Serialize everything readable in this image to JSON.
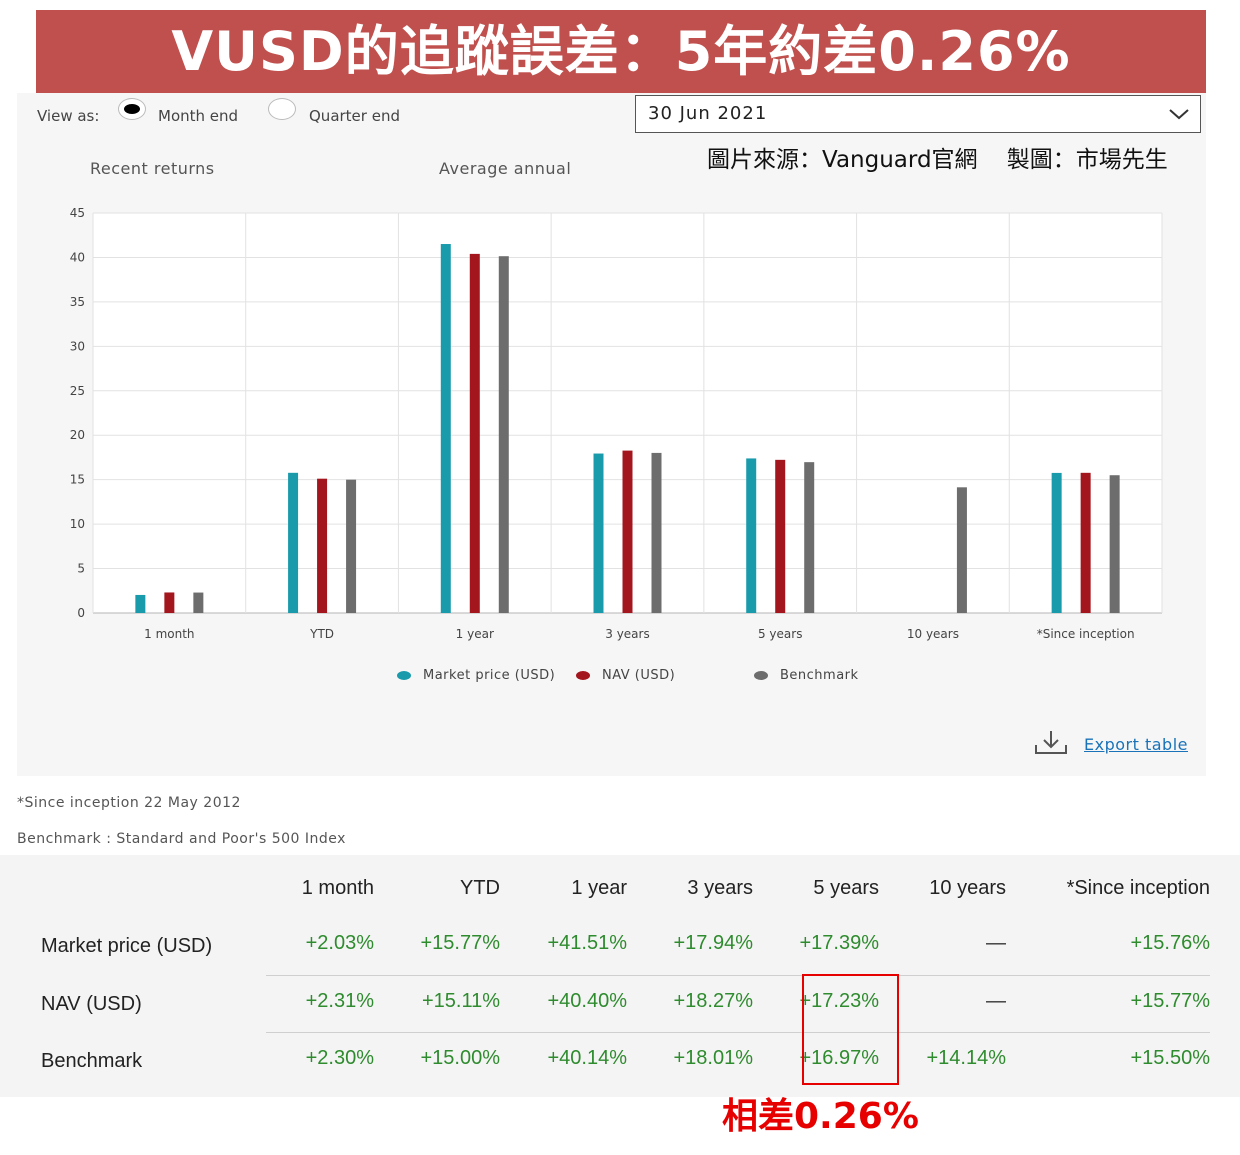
{
  "title": "VUSD的追蹤誤差：5年約差0.26%",
  "controls": {
    "view_as_label": "View as:",
    "month_end_label": "Month end",
    "quarter_end_label": "Quarter end",
    "selected_date": "30 Jun 2021"
  },
  "source_note": "圖片來源：Vanguard官網    製圖：市場先生",
  "section_labels": {
    "recent": "Recent returns",
    "average": "Average annual"
  },
  "export_label": "Export table",
  "footnotes": {
    "since_inception": "*Since inception  22 May 2012",
    "benchmark": "Benchmark : Standard and Poor's 500 Index"
  },
  "chart_data": {
    "type": "bar",
    "categories": [
      "1 month",
      "YTD",
      "1 year",
      "3 years",
      "5 years",
      "10 years",
      "*Since inception"
    ],
    "series": [
      {
        "name": "Market price (USD)",
        "color": "#1a9bac",
        "values": [
          2.03,
          15.77,
          41.51,
          17.94,
          17.39,
          null,
          15.76
        ]
      },
      {
        "name": "NAV (USD)",
        "color": "#a3161e",
        "values": [
          2.31,
          15.11,
          40.4,
          18.27,
          17.23,
          null,
          15.77
        ]
      },
      {
        "name": "Benchmark",
        "color": "#6d6d6d",
        "values": [
          2.3,
          15.0,
          40.14,
          18.01,
          16.97,
          14.14,
          15.5
        ]
      }
    ],
    "yticks": [
      0,
      5,
      10,
      15,
      20,
      25,
      30,
      35,
      40,
      45
    ],
    "ylim": [
      0,
      45
    ],
    "grid": true,
    "legend": "bottom"
  },
  "table": {
    "headers": [
      "1 month",
      "YTD",
      "1 year",
      "3 years",
      "5 years",
      "10 years",
      "*Since inception"
    ],
    "rows": [
      {
        "label": "Market price (USD)",
        "cells": [
          "+2.03%",
          "+15.77%",
          "+41.51%",
          "+17.94%",
          "+17.39%",
          "—",
          "+15.76%"
        ]
      },
      {
        "label": "NAV (USD)",
        "cells": [
          "+2.31%",
          "+15.11%",
          "+40.40%",
          "+18.27%",
          "+17.23%",
          "—",
          "+15.77%"
        ]
      },
      {
        "label": "Benchmark",
        "cells": [
          "+2.30%",
          "+15.00%",
          "+40.14%",
          "+18.01%",
          "+16.97%",
          "+14.14%",
          "+15.50%"
        ]
      }
    ]
  },
  "annotation": {
    "difference_note": "相差0.26%",
    "highlight_color": "#e60000"
  }
}
